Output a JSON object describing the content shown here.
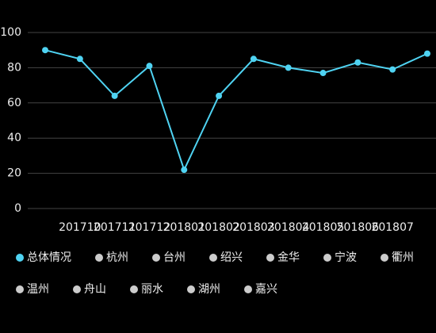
{
  "chart_data": {
    "type": "line",
    "categories": [
      null,
      "201710",
      "201711",
      "201712",
      "201801",
      "201802",
      "201803",
      "201804",
      "201805",
      "201806",
      "201807",
      null
    ],
    "series": [
      {
        "name": "总体情况",
        "color": "#4fd3f2",
        "values": [
          90,
          85,
          64,
          81,
          22,
          64,
          85,
          80,
          77,
          83,
          79,
          88
        ]
      }
    ],
    "legend": [
      {
        "name": "总体情况",
        "color": "#4fd3f2"
      },
      {
        "name": "杭州",
        "color": "#cccccc"
      },
      {
        "name": "台州",
        "color": "#cccccc"
      },
      {
        "name": "绍兴",
        "color": "#cccccc"
      },
      {
        "name": "金华",
        "color": "#cccccc"
      },
      {
        "name": "宁波",
        "color": "#cccccc"
      },
      {
        "name": "衢州",
        "color": "#cccccc"
      },
      {
        "name": "温州",
        "color": "#cccccc"
      },
      {
        "name": "舟山",
        "color": "#cccccc"
      },
      {
        "name": "丽水",
        "color": "#cccccc"
      },
      {
        "name": "湖州",
        "color": "#cccccc"
      },
      {
        "name": "嘉兴",
        "color": "#cccccc"
      }
    ],
    "ylim": [
      0,
      100
    ],
    "yticks": [
      0,
      20,
      40,
      60,
      80,
      100
    ],
    "grid": true
  }
}
